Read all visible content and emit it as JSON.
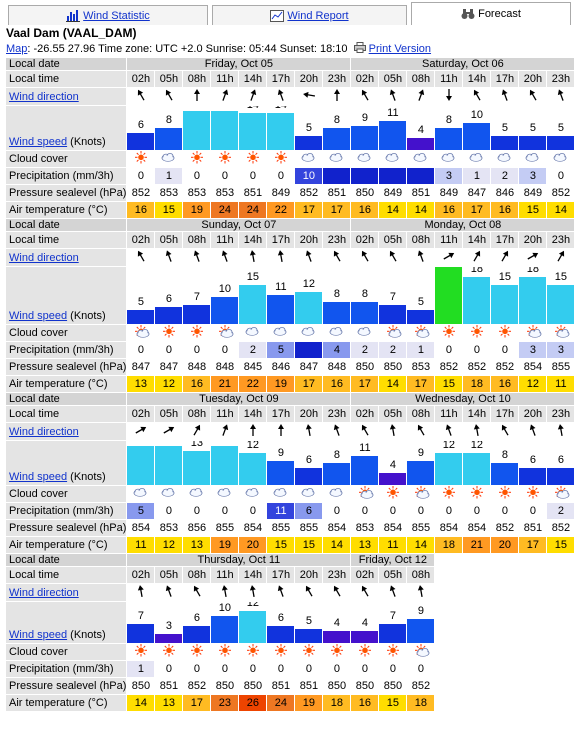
{
  "tabs": [
    {
      "label": "Wind Statistic",
      "icon": "bar-chart-icon"
    },
    {
      "label": "Wind Report",
      "icon": "chart-report-icon"
    },
    {
      "label": "Forecast",
      "icon": "binoculars-icon",
      "active": true
    }
  ],
  "title": "Vaal Dam (VAAL_DAM)",
  "meta": {
    "map_label": "Map",
    "info": ": -26.55 27.96 Time zone: UTC +2.0 Sunrise: 05:44 Sunset: 18:10",
    "print_label": "Print Version"
  },
  "labels": {
    "local_date": "Local date",
    "local_time": "Local time",
    "wind_direction": "Wind direction",
    "wind_speed": "Wind speed",
    "wind_speed_unit": " (Knots)",
    "cloud_cover": "Cloud cover",
    "precipitation": "Precipitation (mm/3h)",
    "pressure": "Pressure sealevel (hPa)",
    "air_temp": "Air temperature (°C)"
  },
  "blocks": [
    {
      "days": [
        {
          "label": "Friday, Oct 05",
          "span": 8
        },
        {
          "label": "Saturday, Oct 06",
          "span": 8
        }
      ],
      "hours": [
        "02h",
        "05h",
        "08h",
        "11h",
        "14h",
        "17h",
        "20h",
        "23h",
        "02h",
        "05h",
        "08h",
        "11h",
        "14h",
        "17h",
        "20h",
        "23h"
      ],
      "dir": [
        150,
        150,
        180,
        200,
        200,
        160,
        100,
        180,
        150,
        160,
        200,
        0,
        150,
        160,
        150,
        160
      ],
      "speed": [
        6,
        8,
        15,
        15,
        14,
        14,
        5,
        8,
        9,
        11,
        4,
        8,
        10,
        5,
        5,
        5
      ],
      "cloud": [
        "sun",
        "cloud",
        "sun",
        "sun",
        "sun",
        "sun",
        "cloud",
        "cloud",
        "cloud",
        "cloud",
        "cloud",
        "cloud",
        "cloud",
        "cloud",
        "cloud",
        "cloud"
      ],
      "prec": [
        "0",
        "1",
        "0",
        "0",
        "0",
        "0",
        "10",
        "",
        "",
        "",
        "",
        "3",
        "1",
        "2",
        "3",
        "0"
      ],
      "pres": [
        852,
        853,
        853,
        853,
        851,
        849,
        852,
        851,
        850,
        849,
        851,
        849,
        847,
        846,
        849,
        852
      ],
      "temp": [
        16,
        15,
        19,
        24,
        24,
        22,
        17,
        17,
        16,
        14,
        14,
        16,
        17,
        16,
        15,
        14
      ]
    },
    {
      "days": [
        {
          "label": "Sunday, Oct 07",
          "span": 8
        },
        {
          "label": "Monday, Oct 08",
          "span": 8
        }
      ],
      "hours": [
        "02h",
        "05h",
        "08h",
        "11h",
        "14h",
        "17h",
        "20h",
        "23h",
        "02h",
        "05h",
        "08h",
        "11h",
        "14h",
        "17h",
        "20h",
        "23h"
      ],
      "dir": [
        150,
        160,
        160,
        160,
        170,
        170,
        160,
        150,
        150,
        150,
        160,
        240,
        210,
        210,
        240,
        210
      ],
      "speed": [
        5,
        6,
        7,
        10,
        15,
        11,
        12,
        8,
        8,
        7,
        5,
        22,
        18,
        15,
        18,
        15
      ],
      "cloud": [
        "sunc",
        "sun",
        "sun",
        "sunc",
        "cloud",
        "cloud",
        "cloud",
        "cloud",
        "cloud",
        "sunc",
        "sunc",
        "sun",
        "sun",
        "sun",
        "sunc",
        "sunc"
      ],
      "prec": [
        "0",
        "0",
        "0",
        "0",
        "2",
        "5",
        "",
        "4",
        "2",
        "2",
        "1",
        "0",
        "0",
        "0",
        "3",
        "3"
      ],
      "pres": [
        847,
        847,
        848,
        848,
        845,
        846,
        847,
        848,
        850,
        850,
        853,
        852,
        852,
        852,
        854,
        855
      ],
      "temp": [
        13,
        12,
        16,
        21,
        22,
        19,
        17,
        16,
        17,
        14,
        17,
        15,
        18,
        16,
        12,
        11
      ]
    },
    {
      "days": [
        {
          "label": "Tuesday, Oct 09",
          "span": 8
        },
        {
          "label": "Wednesday, Oct 10",
          "span": 8
        }
      ],
      "hours": [
        "02h",
        "05h",
        "08h",
        "11h",
        "14h",
        "17h",
        "20h",
        "23h",
        "02h",
        "05h",
        "08h",
        "11h",
        "14h",
        "17h",
        "20h",
        "23h"
      ],
      "dir": [
        240,
        240,
        210,
        200,
        180,
        180,
        170,
        160,
        150,
        170,
        150,
        160,
        170,
        150,
        160,
        170
      ],
      "speed": [
        15,
        15,
        13,
        15,
        12,
        9,
        6,
        8,
        11,
        4,
        9,
        12,
        12,
        8,
        6,
        6
      ],
      "cloud": [
        "cloud",
        "cloud",
        "cloud",
        "cloud",
        "cloud",
        "cloud",
        "cloud",
        "cloud",
        "sunc",
        "sun",
        "sunc",
        "sun",
        "sun",
        "sun",
        "sun",
        "sunc"
      ],
      "prec": [
        "5",
        "0",
        "0",
        "0",
        "0",
        "11",
        "6",
        "0",
        "0",
        "0",
        "0",
        "0",
        "0",
        "0",
        "0",
        "2"
      ],
      "pres": [
        854,
        853,
        856,
        855,
        854,
        855,
        855,
        854,
        853,
        854,
        855,
        854,
        854,
        852,
        851,
        852
      ],
      "temp": [
        11,
        12,
        13,
        19,
        20,
        15,
        15,
        14,
        13,
        11,
        14,
        18,
        21,
        20,
        17,
        15
      ]
    },
    {
      "days": [
        {
          "label": "Thursday, Oct 11",
          "span": 8
        },
        {
          "label": "Friday, Oct 12",
          "span": 3
        }
      ],
      "hours": [
        "02h",
        "05h",
        "08h",
        "11h",
        "14h",
        "17h",
        "20h",
        "23h",
        "02h",
        "05h",
        "08h"
      ],
      "dir": [
        170,
        160,
        150,
        170,
        170,
        160,
        150,
        150,
        150,
        160,
        170
      ],
      "speed": [
        7,
        3,
        6,
        10,
        12,
        6,
        5,
        4,
        4,
        7,
        9
      ],
      "cloud": [
        "sun",
        "sun",
        "sun",
        "sun",
        "sun",
        "sun",
        "sun",
        "sun",
        "sun",
        "sun",
        "sunc"
      ],
      "prec": [
        "1",
        "0",
        "0",
        "0",
        "0",
        "0",
        "0",
        "0",
        "0",
        "0",
        "0"
      ],
      "pres": [
        850,
        851,
        852,
        850,
        850,
        851,
        851,
        850,
        850,
        850,
        852
      ],
      "temp": [
        14,
        13,
        17,
        23,
        26,
        24,
        19,
        18,
        16,
        15,
        18
      ]
    }
  ]
}
